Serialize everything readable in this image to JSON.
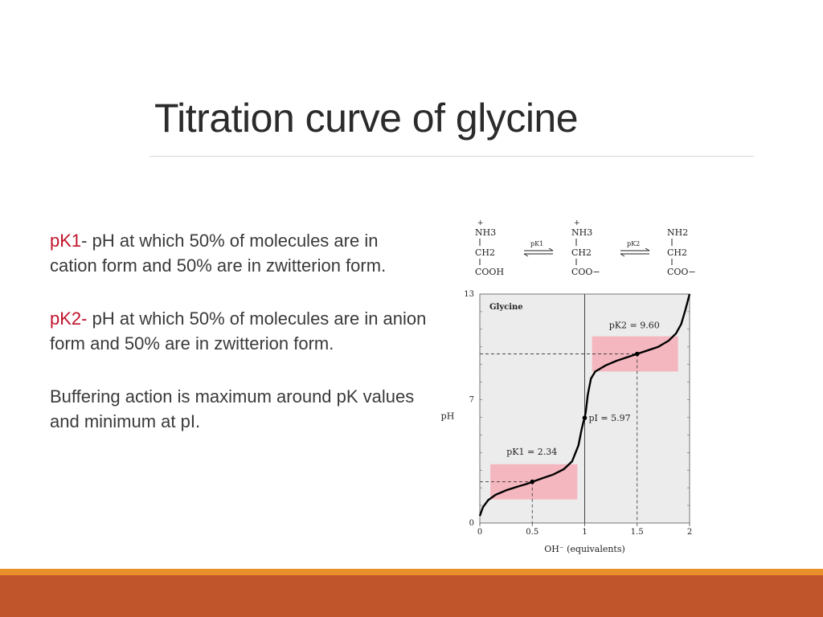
{
  "slide": {
    "title": "Titration curve of glycine",
    "bullets": [
      {
        "term": "pK1",
        "sep": "-",
        "text": " pH at which 50% of molecules are in cation form and 50% are in zwitterion form."
      },
      {
        "term": "pK2",
        "sep": "-",
        "text": " pH at which 50% of molecules are in anion form and 50% are in zwitterion form."
      },
      {
        "term": "",
        "sep": "",
        "text": "Buffering action is maximum around pK values and minimum at pI."
      }
    ]
  },
  "structures": {
    "species": [
      {
        "charge": "+",
        "amine": "NH3",
        "amine_sub": "3",
        "ch": "CH2",
        "carboxyl": "COOH"
      },
      {
        "charge": "+",
        "amine": "NH3",
        "amine_sub": "3",
        "ch": "CH2",
        "carboxyl": "COO−"
      },
      {
        "charge": "",
        "amine": "NH2",
        "amine_sub": "2",
        "ch": "CH2",
        "carboxyl": "COO−"
      }
    ],
    "arrows": [
      {
        "label": "pK1"
      },
      {
        "label": "pK2"
      }
    ]
  },
  "chart_data": {
    "type": "line",
    "title": "Glycine",
    "xlabel": "OH⁻ (equivalents)",
    "ylabel": "pH",
    "xlim": [
      0,
      2
    ],
    "ylim": [
      0,
      13
    ],
    "x_ticks": [
      "0",
      "0.5",
      "1",
      "1.5",
      "2"
    ],
    "y_ticks": [
      "0",
      "7",
      "13"
    ],
    "curve": {
      "x": [
        0.0,
        0.03,
        0.08,
        0.15,
        0.25,
        0.35,
        0.45,
        0.5,
        0.6,
        0.7,
        0.8,
        0.88,
        0.94,
        0.97,
        0.99,
        1.0,
        1.01,
        1.03,
        1.06,
        1.1,
        1.2,
        1.3,
        1.4,
        1.5,
        1.6,
        1.7,
        1.8,
        1.87,
        1.92,
        1.96,
        2.0
      ],
      "y": [
        0.4,
        0.9,
        1.3,
        1.6,
        1.85,
        2.05,
        2.22,
        2.34,
        2.55,
        2.75,
        3.05,
        3.5,
        4.4,
        5.3,
        5.8,
        5.97,
        6.3,
        7.3,
        8.2,
        8.6,
        8.95,
        9.2,
        9.4,
        9.6,
        9.8,
        10.0,
        10.35,
        10.75,
        11.3,
        12.1,
        13.0
      ]
    },
    "annotations": [
      {
        "label": "pK1 = 2.34",
        "x": 0.5,
        "y": 2.34
      },
      {
        "label": "pI = 5.97",
        "x": 1.0,
        "y": 5.97
      },
      {
        "label": "pK2 = 9.60",
        "x": 1.5,
        "y": 9.6
      }
    ],
    "buffer_regions": [
      {
        "x": [
          0.1,
          0.93
        ],
        "y": [
          1.34,
          3.34
        ]
      },
      {
        "x": [
          1.07,
          1.89
        ],
        "y": [
          8.6,
          10.6
        ]
      }
    ],
    "colors": {
      "curve": "#000000",
      "buffer": "#f4b7c0",
      "plot_bg": "#ececec"
    }
  }
}
